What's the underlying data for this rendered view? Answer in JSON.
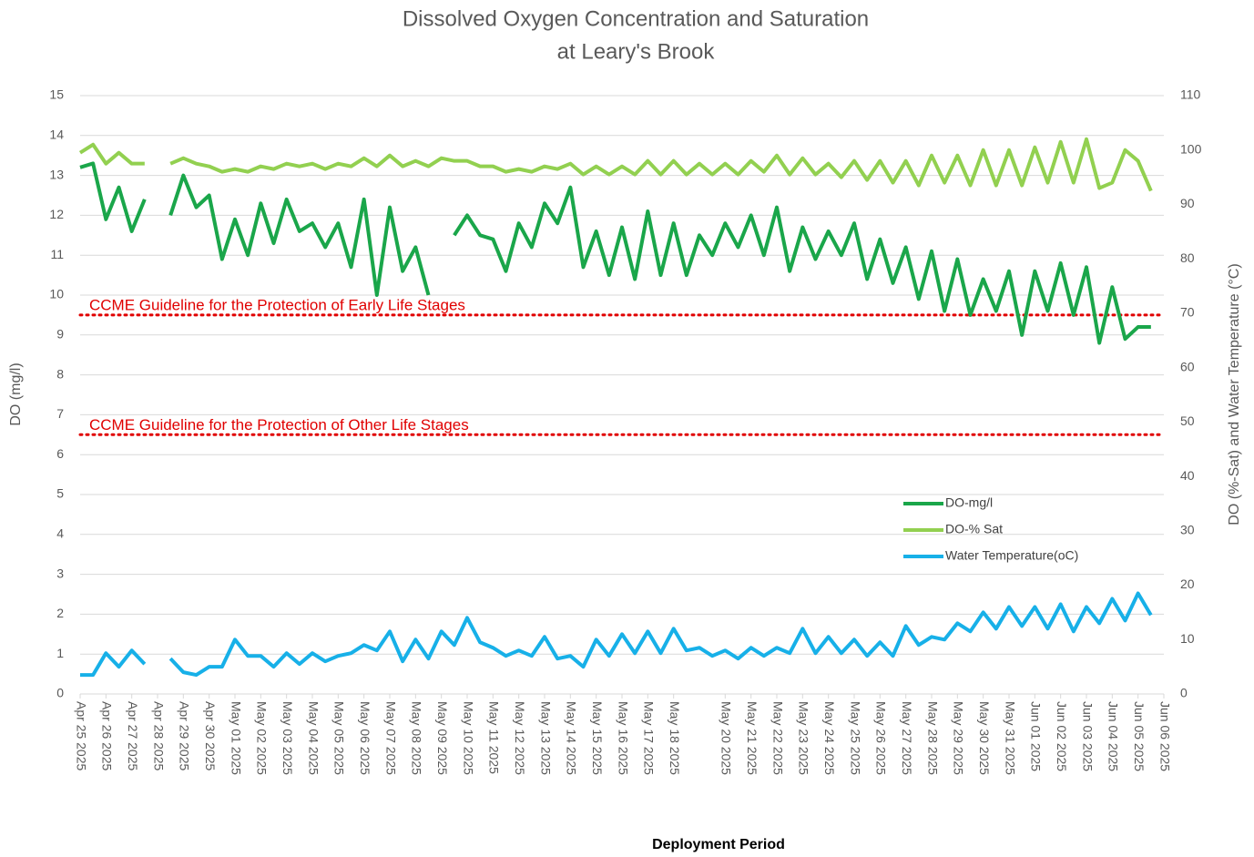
{
  "chart_data": {
    "type": "line",
    "title": [
      "Dissolved Oxygen Concentration and Saturation",
      "at Leary's Brook"
    ],
    "xlabel": "Deployment Period",
    "ylabel": "DO (mg/l)",
    "y2label": "DO (%-Sat) and Water Temperature  (°C)",
    "xlim": [
      0,
      42
    ],
    "xticks": [
      {
        "value": 0,
        "label": "Apr 25 2025"
      },
      {
        "value": 1,
        "label": "Apr 26 2025"
      },
      {
        "value": 2,
        "label": "Apr 27 2025"
      },
      {
        "value": 3,
        "label": "Apr 28 2025"
      },
      {
        "value": 4,
        "label": "Apr 29 2025"
      },
      {
        "value": 5,
        "label": "Apr 30 2025"
      },
      {
        "value": 6,
        "label": "May 01 2025"
      },
      {
        "value": 7,
        "label": "May 02 2025"
      },
      {
        "value": 8,
        "label": "May 03 2025"
      },
      {
        "value": 9,
        "label": "May 04 2025"
      },
      {
        "value": 10,
        "label": "May 05 2025"
      },
      {
        "value": 11,
        "label": "May 06 2025"
      },
      {
        "value": 12,
        "label": "May 07 2025"
      },
      {
        "value": 13,
        "label": "May 08 2025"
      },
      {
        "value": 14,
        "label": "May 09 2025"
      },
      {
        "value": 15,
        "label": "May 10 2025"
      },
      {
        "value": 16,
        "label": "May 11 2025"
      },
      {
        "value": 17,
        "label": "May 12 2025"
      },
      {
        "value": 18,
        "label": "May 13 2025"
      },
      {
        "value": 19,
        "label": "May 14 2025"
      },
      {
        "value": 20,
        "label": "May 15 2025"
      },
      {
        "value": 21,
        "label": "May 16 2025"
      },
      {
        "value": 22,
        "label": "May 17 2025"
      },
      {
        "value": 23,
        "label": "May 18 2025"
      },
      {
        "value": 25,
        "label": "May 20 2025"
      },
      {
        "value": 26,
        "label": "May 21 2025"
      },
      {
        "value": 27,
        "label": "May 22 2025"
      },
      {
        "value": 28,
        "label": "May 23 2025"
      },
      {
        "value": 29,
        "label": "May 24 2025"
      },
      {
        "value": 30,
        "label": "May 25 2025"
      },
      {
        "value": 31,
        "label": "May 26 2025"
      },
      {
        "value": 32,
        "label": "May 27 2025"
      },
      {
        "value": 33,
        "label": "May 28 2025"
      },
      {
        "value": 34,
        "label": "May 29 2025"
      },
      {
        "value": 35,
        "label": "May 30 2025"
      },
      {
        "value": 36,
        "label": "May 31 2025"
      },
      {
        "value": 37,
        "label": "Jun 01 2025"
      },
      {
        "value": 38,
        "label": "Jun 02 2025"
      },
      {
        "value": 39,
        "label": "Jun 03 2025"
      },
      {
        "value": 40,
        "label": "Jun 04 2025"
      },
      {
        "value": 41,
        "label": "Jun 05 2025"
      },
      {
        "value": 42,
        "label": "Jun 06 2025"
      }
    ],
    "ylim": [
      0,
      15
    ],
    "yticks": [
      0,
      1,
      2,
      3,
      4,
      5,
      6,
      7,
      8,
      9,
      10,
      11,
      12,
      13,
      14,
      15
    ],
    "y2lim": [
      0,
      110
    ],
    "y2ticks": [
      0,
      10,
      20,
      30,
      40,
      50,
      60,
      70,
      80,
      90,
      100,
      110
    ],
    "grid": true,
    "legend": "lower right",
    "guidelines": [
      {
        "value": 9.5,
        "label": "CCME Guideline for the Protection of Early Life Stages",
        "color": "#e00000"
      },
      {
        "value": 6.5,
        "label": "CCME Guideline for the Protection of Other Life Stages",
        "color": "#e00000"
      }
    ],
    "x": [
      0,
      0.5,
      1,
      1.5,
      2,
      2.5,
      3,
      3.5,
      4,
      4.5,
      5,
      5.5,
      6,
      6.5,
      7,
      7.5,
      8,
      8.5,
      9,
      9.5,
      10,
      10.5,
      11,
      11.5,
      12,
      12.5,
      13,
      13.5,
      14,
      14.5,
      15,
      15.5,
      16,
      16.5,
      17,
      17.5,
      18,
      18.5,
      19,
      19.5,
      20,
      20.5,
      21,
      21.5,
      22,
      22.5,
      23,
      23.5,
      24,
      24.5,
      25,
      25.5,
      26,
      26.5,
      27,
      27.5,
      28,
      28.5,
      29,
      29.5,
      30,
      30.5,
      31,
      31.5,
      32,
      32.5,
      33,
      33.5,
      34,
      34.5,
      35,
      35.5,
      36,
      36.5,
      37,
      37.5,
      38,
      38.5,
      39,
      39.5,
      40,
      40.5,
      41,
      41.5
    ],
    "series": [
      {
        "name": "DO-mg/l",
        "color": "#1aa64a",
        "axis": "y",
        "values": [
          13.2,
          13.3,
          11.9,
          12.7,
          11.6,
          12.4,
          null,
          12.0,
          13.0,
          12.2,
          12.5,
          10.9,
          11.9,
          11.0,
          12.3,
          11.3,
          12.4,
          11.6,
          11.8,
          11.2,
          11.8,
          10.7,
          12.4,
          10.0,
          12.2,
          10.6,
          11.2,
          10.0,
          null,
          11.5,
          12.0,
          11.5,
          11.4,
          10.6,
          11.8,
          11.2,
          12.3,
          11.8,
          12.7,
          10.7,
          11.6,
          10.5,
          11.7,
          10.4,
          12.1,
          10.5,
          11.8,
          10.5,
          11.5,
          11.0,
          11.8,
          11.2,
          12.0,
          11.0,
          12.2,
          10.6,
          11.7,
          10.9,
          11.6,
          11.0,
          11.8,
          10.4,
          11.4,
          10.3,
          11.2,
          9.9,
          11.1,
          9.6,
          10.9,
          9.5,
          10.4,
          9.6,
          10.6,
          9.0,
          10.6,
          9.6,
          10.8,
          9.5,
          10.7,
          8.8,
          10.2,
          8.9,
          9.2,
          9.2
        ]
      },
      {
        "name": "DO-% Sat",
        "color": "#92d050",
        "axis": "y2",
        "values": [
          99.5,
          101,
          97.5,
          99.5,
          97.5,
          97.5,
          null,
          97.5,
          98.5,
          97.5,
          97,
          96,
          96.5,
          96,
          97,
          96.5,
          97.5,
          97,
          97.5,
          96.5,
          97.5,
          97,
          98.5,
          97,
          99,
          97,
          98,
          97,
          98.5,
          98,
          98,
          97,
          97,
          96,
          96.5,
          96,
          97,
          96.5,
          97.5,
          95.5,
          97,
          95.5,
          97,
          95.5,
          98,
          95.5,
          98,
          95.5,
          97.5,
          95.5,
          97.5,
          95.5,
          98,
          96,
          99,
          95.5,
          98.5,
          95.5,
          97.5,
          95,
          98,
          94.5,
          98,
          94,
          98,
          93.5,
          99,
          94,
          99,
          93.5,
          100,
          93.5,
          100,
          93.5,
          100.5,
          94,
          101.5,
          94,
          102,
          93,
          94,
          100,
          98,
          92.5
        ]
      },
      {
        "name": "Water Temperature(oC)",
        "color": "#17b0e8",
        "axis": "y2",
        "values": [
          3.5,
          3.5,
          7.5,
          5,
          8,
          5.5,
          null,
          6.5,
          4,
          3.5,
          5,
          5,
          10,
          7,
          7,
          5,
          7.5,
          5.5,
          7.5,
          6,
          7,
          7.5,
          9,
          8,
          11.5,
          6,
          10,
          6.5,
          11.5,
          9,
          14,
          9.5,
          8.5,
          7,
          8,
          7,
          10.5,
          6.5,
          7,
          5,
          10,
          7,
          11,
          7.5,
          11.5,
          7.5,
          12,
          8,
          8.5,
          7,
          8,
          6.5,
          8.5,
          7,
          8.5,
          7.5,
          12,
          7.5,
          10.5,
          7.5,
          10,
          7,
          9.5,
          7,
          12.5,
          9,
          10.5,
          10,
          13,
          11.5,
          15,
          12,
          16,
          12.5,
          16,
          12,
          16.5,
          11.5,
          16,
          13,
          17.5,
          13.5,
          18.5,
          14.5
        ]
      }
    ]
  }
}
